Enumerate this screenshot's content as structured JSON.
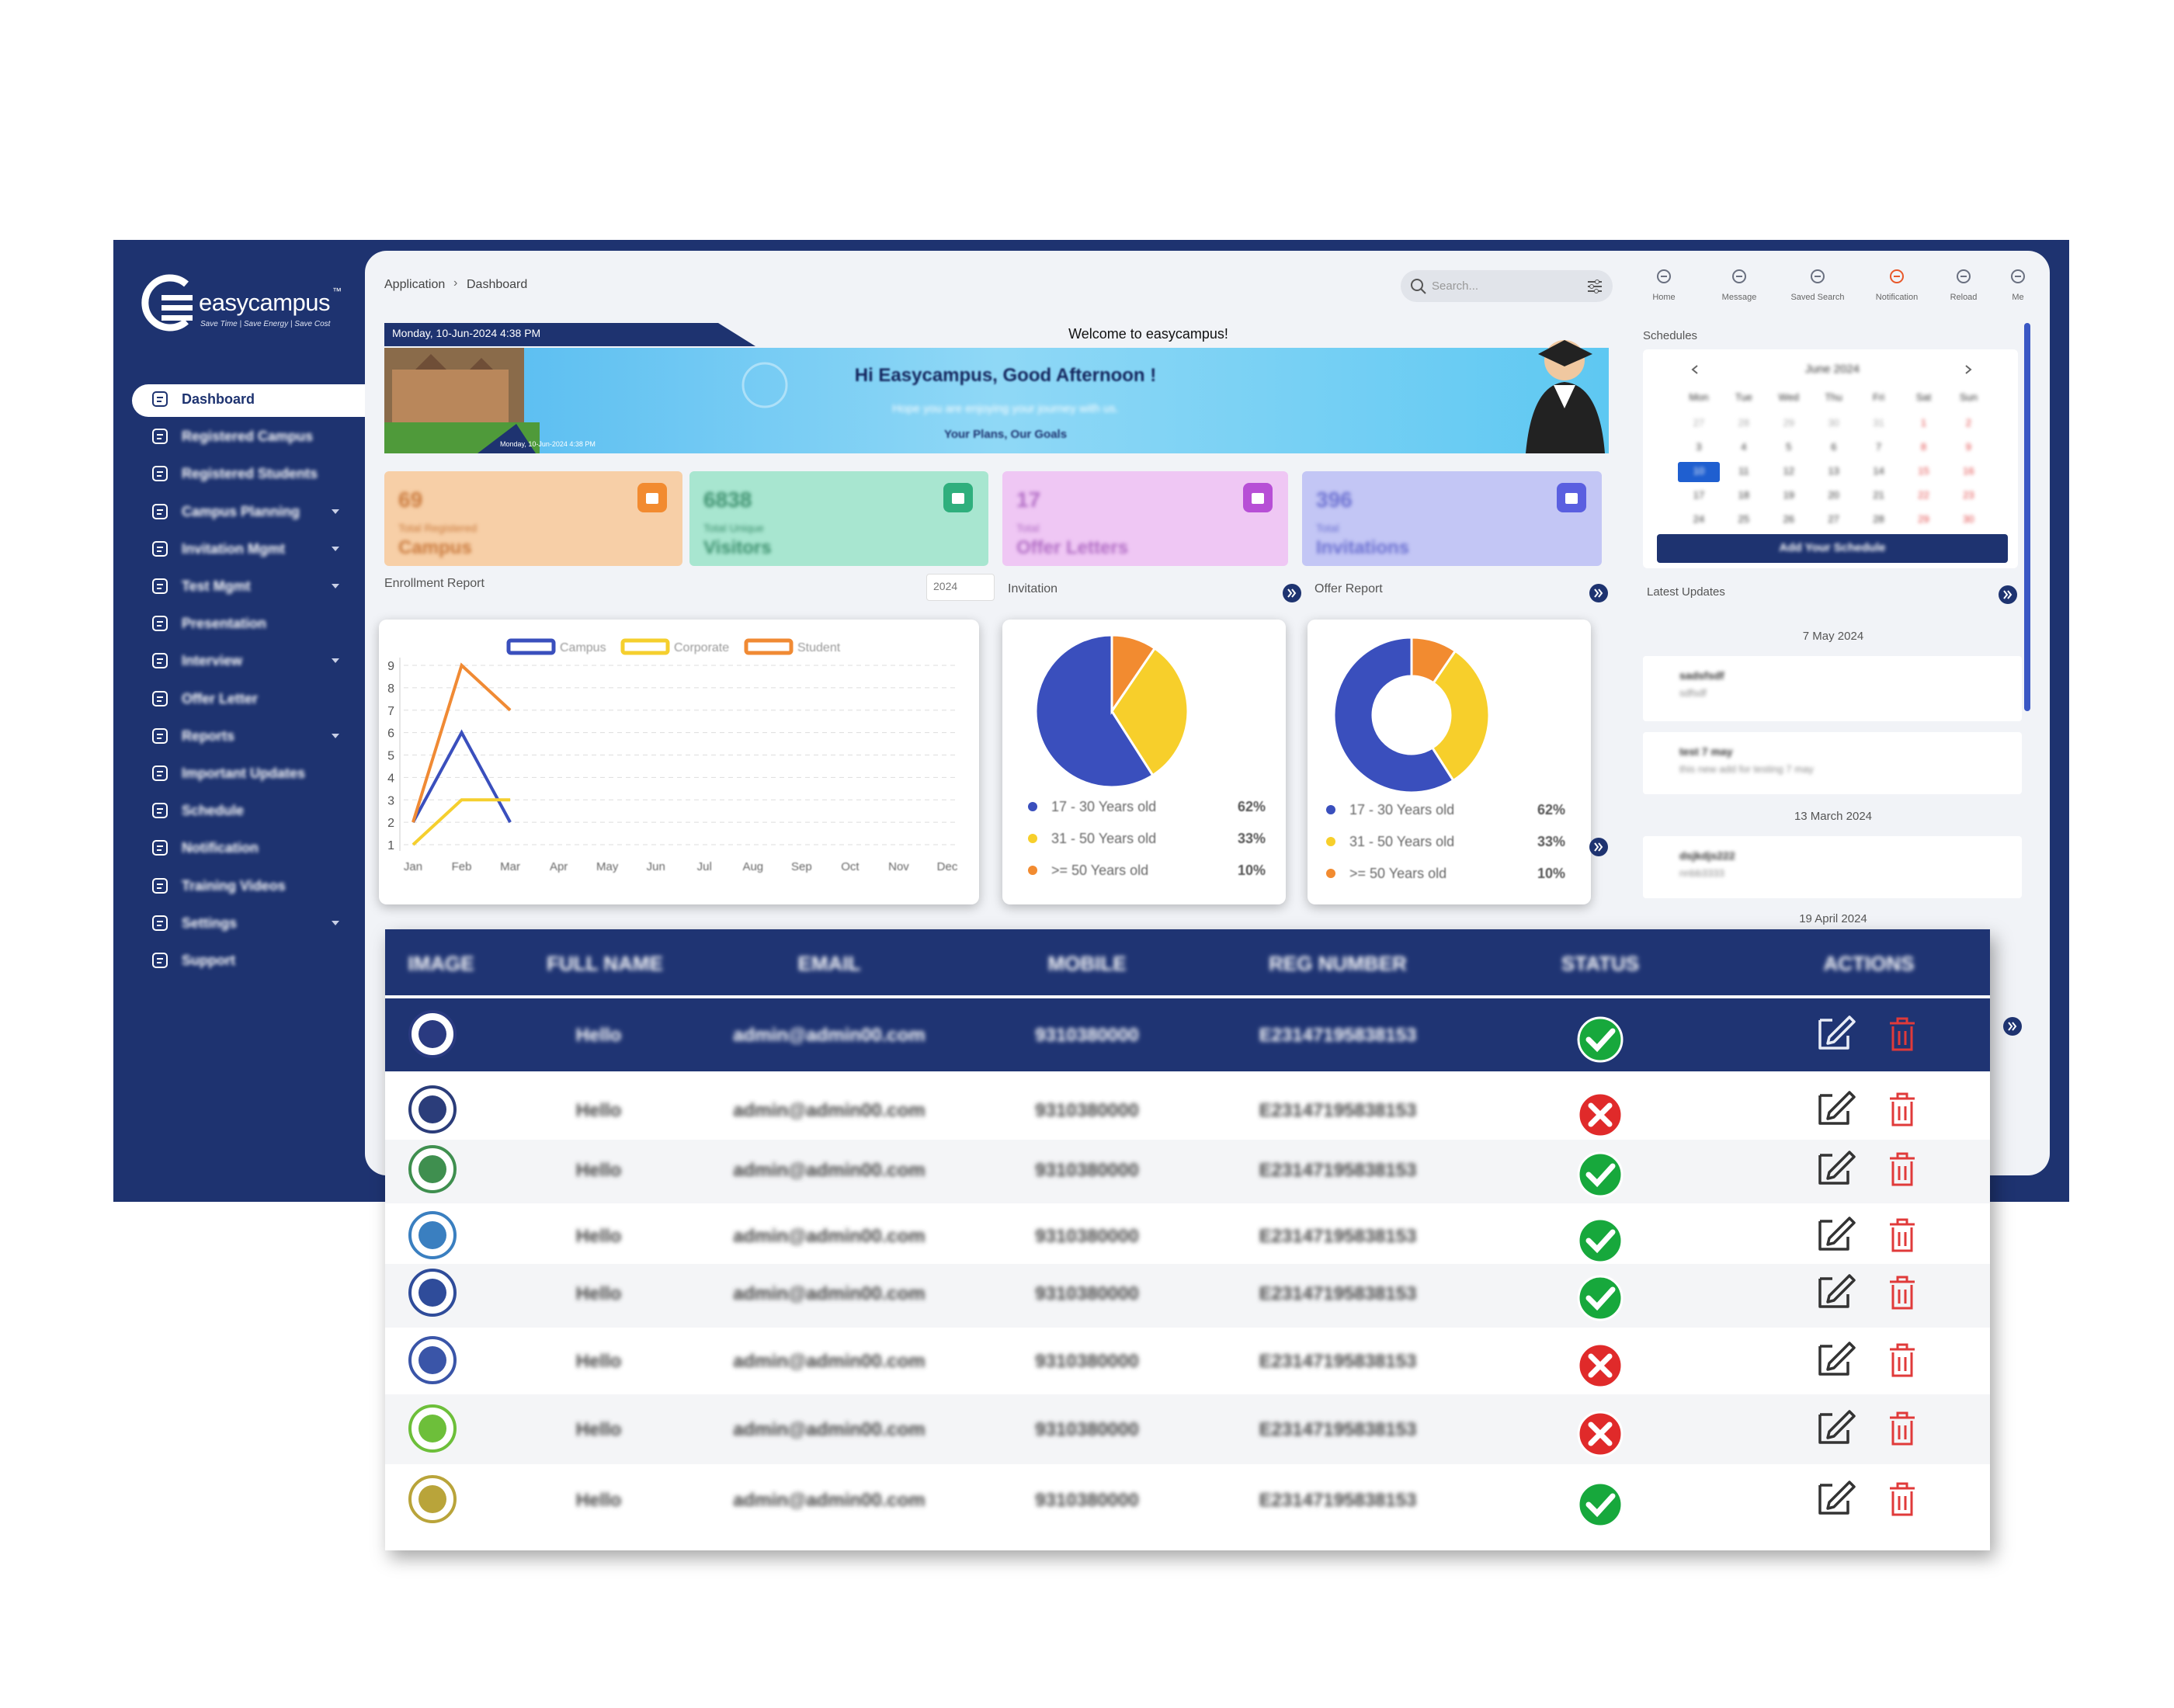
{
  "sidebar": {
    "brand": "easycampus",
    "trademark": "™",
    "tagline": "Save Time | Save Energy | Save Cost",
    "items": [
      {
        "label": "Dashboard",
        "submenu": false
      },
      {
        "label": "Registered Campus",
        "submenu": false
      },
      {
        "label": "Registered Students",
        "submenu": false
      },
      {
        "label": "Campus Planning",
        "submenu": true
      },
      {
        "label": "Invitation Mgmt",
        "submenu": true
      },
      {
        "label": "Test Mgmt",
        "submenu": true
      },
      {
        "label": "Presentation",
        "submenu": false
      },
      {
        "label": "Interview",
        "submenu": true
      },
      {
        "label": "Offer Letter",
        "submenu": false
      },
      {
        "label": "Reports",
        "submenu": true
      },
      {
        "label": "Important Updates",
        "submenu": false
      },
      {
        "label": "Schedule",
        "submenu": false
      },
      {
        "label": "Notification",
        "submenu": false
      },
      {
        "label": "Training Videos",
        "submenu": false
      },
      {
        "label": "Settings",
        "submenu": true
      },
      {
        "label": "Support",
        "submenu": false
      }
    ]
  },
  "header": {
    "breadcrumb": [
      "Application",
      "Dashboard"
    ],
    "search_placeholder": "Search...",
    "icons": [
      "Home",
      "Message",
      "Saved Search",
      "Notification",
      "Reload",
      "Me"
    ]
  },
  "banner": {
    "date": "Monday, 10-Jun-2024 4:38 PM",
    "welcome": "Welcome to easycampus!",
    "greeting": "Hi Easycampus, Good Afternoon !",
    "message": "Hope you are enjoying your journey with us.",
    "tagline": "Your Plans, Our Goals"
  },
  "stats": [
    {
      "value": "69",
      "label": "Total Registered",
      "title": "Campus"
    },
    {
      "value": "6838",
      "label": "Total Unique",
      "title": "Visitors"
    },
    {
      "value": "17",
      "label": "Total",
      "title": "Offer Letters"
    },
    {
      "value": "396",
      "label": "Total",
      "title": "Invitations"
    }
  ],
  "chart_data": [
    {
      "type": "line",
      "title": "Enrollment Report",
      "year_filter": "2024",
      "categories": [
        "Jan",
        "Feb",
        "Mar",
        "Apr",
        "May",
        "Jun",
        "Jul",
        "Aug",
        "Sep",
        "Oct",
        "Nov",
        "Dec"
      ],
      "series": [
        {
          "name": "Campus",
          "color": "#3a4fbd",
          "values": [
            2,
            6,
            2,
            null,
            null,
            null,
            null,
            null,
            null,
            null,
            null,
            null
          ]
        },
        {
          "name": "Corporate",
          "color": "#f5cf2e",
          "values": [
            1,
            3,
            3,
            null,
            null,
            null,
            null,
            null,
            null,
            null,
            null,
            null
          ]
        },
        {
          "name": "Student",
          "color": "#f08a34",
          "values": [
            2,
            9,
            7,
            null,
            null,
            null,
            null,
            null,
            null,
            null,
            null,
            null
          ]
        }
      ],
      "ylim": [
        1,
        9
      ],
      "yticks": [
        1,
        2,
        3,
        4,
        5,
        6,
        7,
        8,
        9
      ],
      "grid": true
    },
    {
      "type": "pie",
      "title": "Invitation",
      "categories": [
        "17 - 30 Years old",
        "31 - 50 Years old",
        ">= 50 Years old"
      ],
      "values": [
        62,
        33,
        10
      ],
      "value_labels": [
        "62%",
        "33%",
        "10%"
      ],
      "colors": [
        "#3a4fbd",
        "#f7cf2b",
        "#f28b30"
      ]
    },
    {
      "type": "donut",
      "title": "Offer Report",
      "categories": [
        "17 - 30 Years old",
        "31 - 50 Years old",
        ">= 50 Years old"
      ],
      "values": [
        62,
        33,
        10
      ],
      "value_labels": [
        "62%",
        "33%",
        "10%"
      ],
      "colors": [
        "#3a4fbd",
        "#f7cf2b",
        "#f28b30"
      ]
    }
  ],
  "calendar": {
    "title": "Schedules",
    "month": "June 2024",
    "weekdays": [
      "Mon",
      "Tue",
      "Wed",
      "Thu",
      "Fri",
      "Sat",
      "Sun"
    ],
    "days": [
      27,
      28,
      29,
      30,
      31,
      1,
      2,
      3,
      4,
      5,
      6,
      7,
      8,
      9,
      10,
      11,
      12,
      13,
      14,
      15,
      16,
      17,
      18,
      19,
      20,
      21,
      22,
      23,
      24,
      25,
      26,
      27,
      28,
      29,
      30
    ],
    "selected": 10,
    "button": "Add Your Schedule"
  },
  "updates": {
    "title": "Latest Updates",
    "groups": [
      {
        "date": "7 May 2024",
        "items": [
          {
            "title": "sadsfsdf",
            "text": "sdfsdf"
          },
          {
            "title": "test 7 may",
            "text": "this new add for testing 7 may"
          }
        ]
      },
      {
        "date": "13 March 2024",
        "items": [
          {
            "title": "dsjkdjs222",
            "text": "nnbb3333"
          }
        ]
      },
      {
        "date": "19 April 2024",
        "items": []
      }
    ]
  },
  "table": {
    "headers": [
      "IMAGE",
      "FULL NAME",
      "EMAIL",
      "MOBILE",
      "REG NUMBER",
      "STATUS",
      "ACTIONS"
    ],
    "rows": [
      {
        "full_name": "Hello",
        "email": "admin@admin00.com",
        "mobile": "9310380000",
        "reg_number": "E23147195838153",
        "active": true
      },
      {
        "full_name": "Hello",
        "email": "admin@admin00.com",
        "mobile": "9310380000",
        "reg_number": "E23147195838153",
        "active": false
      },
      {
        "full_name": "Hello",
        "email": "admin@admin00.com",
        "mobile": "9310380000",
        "reg_number": "E23147195838153",
        "active": true
      },
      {
        "full_name": "Hello",
        "email": "admin@admin00.com",
        "mobile": "9310380000",
        "reg_number": "E23147195838153",
        "active": true
      },
      {
        "full_name": "Hello",
        "email": "admin@admin00.com",
        "mobile": "9310380000",
        "reg_number": "E23147195838153",
        "active": true
      },
      {
        "full_name": "Hello",
        "email": "admin@admin00.com",
        "mobile": "9310380000",
        "reg_number": "E23147195838153",
        "active": false
      },
      {
        "full_name": "Hello",
        "email": "admin@admin00.com",
        "mobile": "9310380000",
        "reg_number": "E23147195838153",
        "active": false
      },
      {
        "full_name": "Hello",
        "email": "admin@admin00.com",
        "mobile": "9310380000",
        "reg_number": "E23147195838153",
        "active": true
      }
    ]
  }
}
